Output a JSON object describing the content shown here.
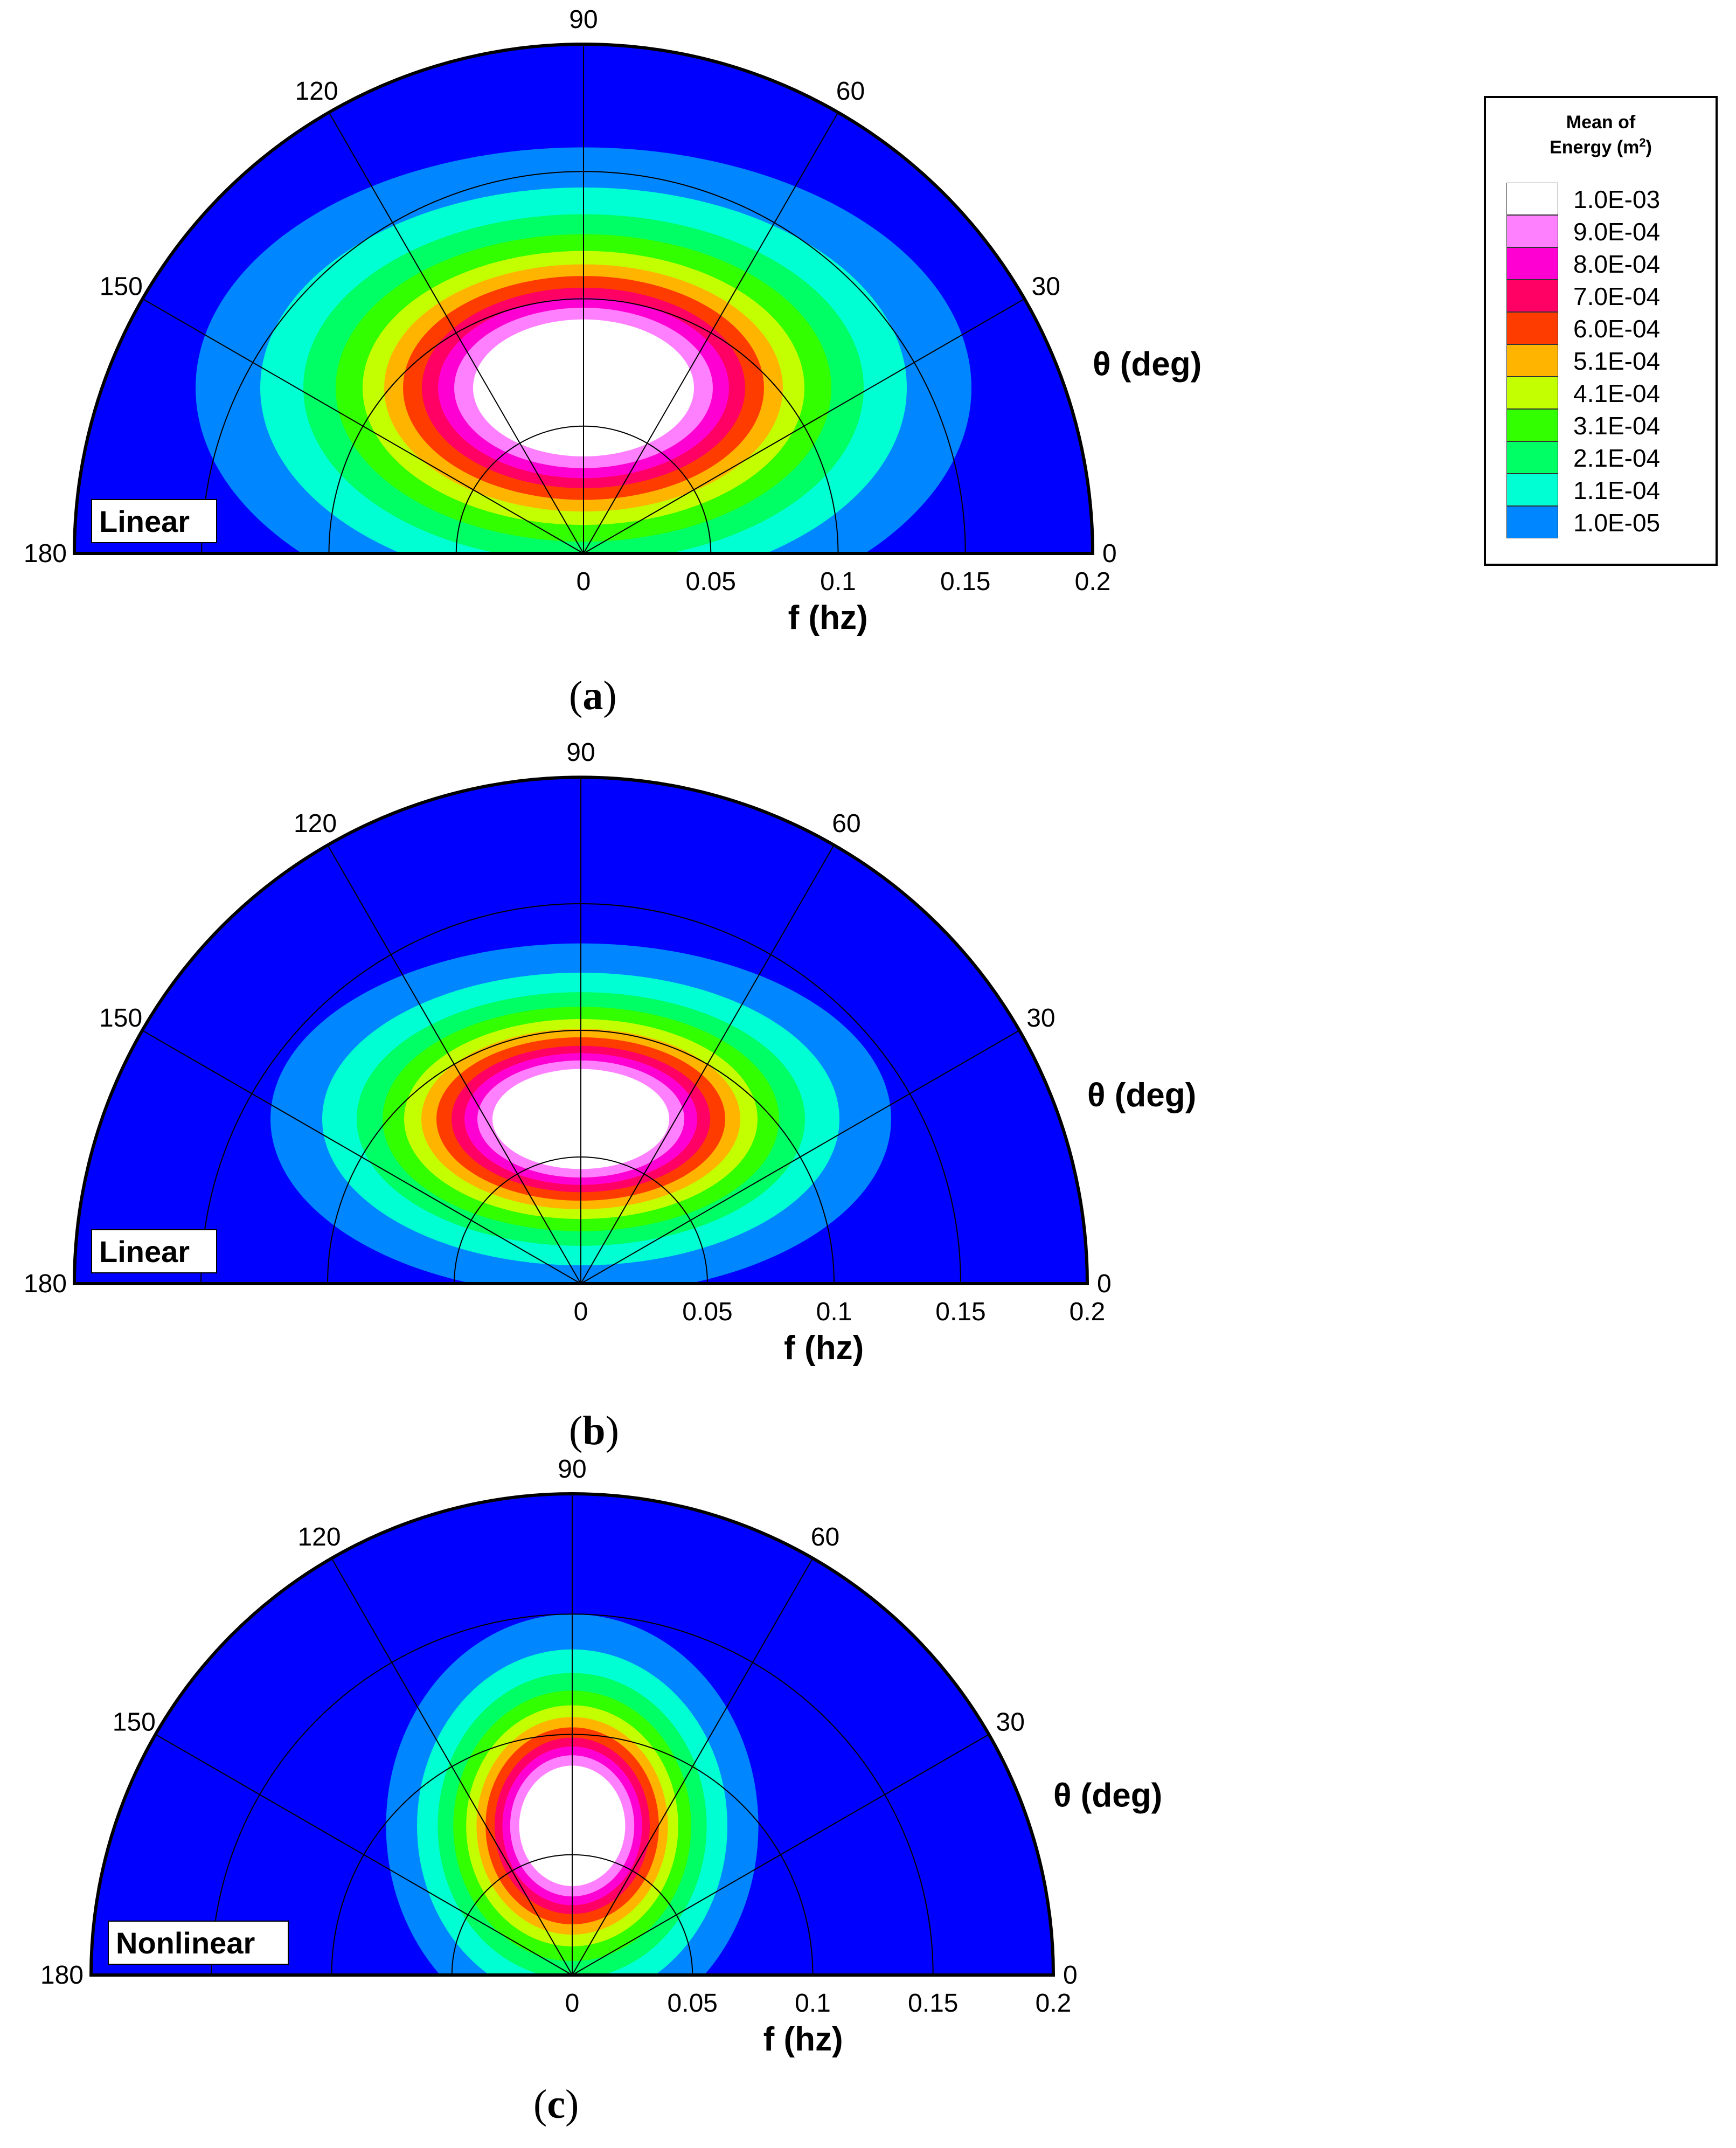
{
  "legend": {
    "title_line1": "Mean of",
    "title_line2": "Energy (m",
    "title_sup": "2",
    "title_close": ")",
    "levels": [
      {
        "label": "1.0E-03",
        "color": "#ffffff"
      },
      {
        "label": "9.0E-04",
        "color": "#ff80ff"
      },
      {
        "label": "8.0E-04",
        "color": "#ff00d2"
      },
      {
        "label": "7.0E-04",
        "color": "#ff0064"
      },
      {
        "label": "6.0E-04",
        "color": "#ff3c00"
      },
      {
        "label": "5.1E-04",
        "color": "#ffb400"
      },
      {
        "label": "4.1E-04",
        "color": "#c3ff00"
      },
      {
        "label": "3.1E-04",
        "color": "#32ff00"
      },
      {
        "label": "2.1E-04",
        "color": "#00ff64"
      },
      {
        "label": "1.1E-04",
        "color": "#00ffd2"
      },
      {
        "label": "1.0E-05",
        "color": "#0087ff"
      }
    ],
    "below_min_color": "#0000ff"
  },
  "chart_data": [
    {
      "type": "polar-contour",
      "panel_label": "a",
      "model_label": "Linear",
      "angle_axis_label": "θ (deg)",
      "radial_axis_label": "f (hz)",
      "angle_ticks": [
        "180",
        "150",
        "120",
        "90",
        "60",
        "30",
        "0"
      ],
      "radial_ticks": [
        "0",
        "0.05",
        "0.1",
        "0.15",
        "0.2"
      ],
      "radial_range": [
        0,
        0.2
      ],
      "angle_range": [
        0,
        180
      ],
      "peak": {
        "theta_deg": 90,
        "f_hz": 0.065
      }
    },
    {
      "type": "polar-contour",
      "panel_label": "b",
      "model_label": "Linear",
      "angle_axis_label": "θ (deg)",
      "radial_axis_label": "f (hz)",
      "angle_ticks": [
        "180",
        "150",
        "120",
        "90",
        "60",
        "30",
        "0"
      ],
      "radial_ticks": [
        "0",
        "0.05",
        "0.1",
        "0.15",
        "0.2"
      ],
      "radial_range": [
        0,
        0.2
      ],
      "angle_range": [
        0,
        180
      ],
      "peak": {
        "theta_deg": 90,
        "f_hz": 0.065
      }
    },
    {
      "type": "polar-contour",
      "panel_label": "c",
      "model_label": "Nonlinear",
      "angle_axis_label": "θ (deg)",
      "radial_axis_label": "f (hz)",
      "angle_ticks": [
        "180",
        "150",
        "120",
        "90",
        "60",
        "30",
        "0"
      ],
      "radial_ticks": [
        "0",
        "0.05",
        "0.1",
        "0.15",
        "0.2"
      ],
      "radial_range": [
        0,
        0.2
      ],
      "angle_range": [
        0,
        180
      ],
      "peak": {
        "theta_deg": 90,
        "f_hz": 0.062
      }
    }
  ]
}
